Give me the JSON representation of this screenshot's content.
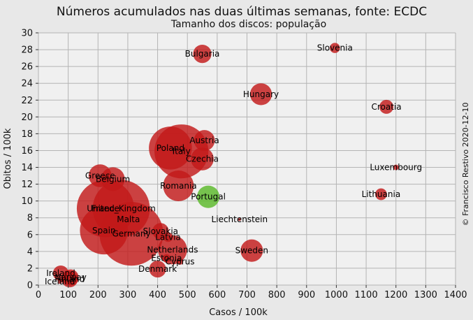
{
  "chart_data": {
    "type": "scatter",
    "title": "Números acumulados nas duas últimas semanas, fonte: ECDC",
    "subtitle": "Tamanho dos discos: população",
    "xlabel": "Casos / 100k",
    "ylabel": "Obitos / 100k",
    "credit": "© Francisco Restivo 2020-12-10",
    "xlim": [
      0,
      1400
    ],
    "ylim": [
      0,
      30
    ],
    "xticks": [
      0,
      100,
      200,
      300,
      400,
      500,
      600,
      700,
      800,
      900,
      1000,
      1100,
      1200,
      1300,
      1400
    ],
    "yticks": [
      0,
      2,
      4,
      6,
      8,
      10,
      12,
      14,
      16,
      18,
      20,
      22,
      24,
      26,
      28,
      30
    ],
    "grid": true,
    "colors": {
      "default": "#c21a1a",
      "highlight": "#5ab82a",
      "plot_bg": "#f0f0f0",
      "grid": "#b4b4b4"
    },
    "points": [
      {
        "label": "Germany",
        "x": 312,
        "y": 6.1,
        "population_m": 83.2
      },
      {
        "label": "France",
        "x": 225,
        "y": 9.1,
        "population_m": 67.3
      },
      {
        "label": "United_Kingdom",
        "x": 278,
        "y": 9.1,
        "population_m": 66.8
      },
      {
        "label": "Italy",
        "x": 480,
        "y": 15.9,
        "population_m": 59.6
      },
      {
        "label": "Spain",
        "x": 220,
        "y": 6.5,
        "population_m": 47.3
      },
      {
        "label": "Poland",
        "x": 443,
        "y": 16.3,
        "population_m": 37.9
      },
      {
        "label": "Romania",
        "x": 470,
        "y": 11.8,
        "population_m": 19.3
      },
      {
        "label": "Netherlands",
        "x": 450,
        "y": 4.2,
        "population_m": 17.4
      },
      {
        "label": "Belgium",
        "x": 250,
        "y": 12.6,
        "population_m": 11.5
      },
      {
        "label": "Czechia",
        "x": 550,
        "y": 15.0,
        "population_m": 10.7
      },
      {
        "label": "Greece",
        "x": 207,
        "y": 13.0,
        "population_m": 10.7
      },
      {
        "label": "Portugal",
        "x": 570,
        "y": 10.5,
        "population_m": 10.3
      },
      {
        "label": "Sweden",
        "x": 716,
        "y": 4.1,
        "population_m": 10.3
      },
      {
        "label": "Hungary",
        "x": 747,
        "y": 22.7,
        "population_m": 9.8
      },
      {
        "label": "Austria",
        "x": 557,
        "y": 17.2,
        "population_m": 8.9
      },
      {
        "label": "Bulgaria",
        "x": 550,
        "y": 27.5,
        "population_m": 6.9
      },
      {
        "label": "Denmark",
        "x": 400,
        "y": 1.9,
        "population_m": 5.8
      },
      {
        "label": "Finland",
        "x": 105,
        "y": 0.7,
        "population_m": 5.5
      },
      {
        "label": "Slovakia",
        "x": 410,
        "y": 6.4,
        "population_m": 5.5
      },
      {
        "label": "Norway",
        "x": 108,
        "y": 0.9,
        "population_m": 5.4
      },
      {
        "label": "Ireland",
        "x": 75,
        "y": 1.4,
        "population_m": 5.0
      },
      {
        "label": "Croatia",
        "x": 1168,
        "y": 21.2,
        "population_m": 4.0
      },
      {
        "label": "Lithuania",
        "x": 1150,
        "y": 10.8,
        "population_m": 2.8
      },
      {
        "label": "Slovenia",
        "x": 995,
        "y": 28.2,
        "population_m": 2.1
      },
      {
        "label": "Latvia",
        "x": 435,
        "y": 5.7,
        "population_m": 1.9
      },
      {
        "label": "Estonia",
        "x": 430,
        "y": 3.2,
        "population_m": 1.3
      },
      {
        "label": "Cyprus",
        "x": 475,
        "y": 2.8,
        "population_m": 0.9
      },
      {
        "label": "Luxembourg",
        "x": 1200,
        "y": 14.0,
        "population_m": 0.63
      },
      {
        "label": "Malta",
        "x": 302,
        "y": 7.8,
        "population_m": 0.51
      },
      {
        "label": "Iceland",
        "x": 72,
        "y": 0.4,
        "population_m": 0.37
      },
      {
        "label": "Liechtenstein",
        "x": 675,
        "y": 7.8,
        "population_m": 0.04
      }
    ]
  }
}
